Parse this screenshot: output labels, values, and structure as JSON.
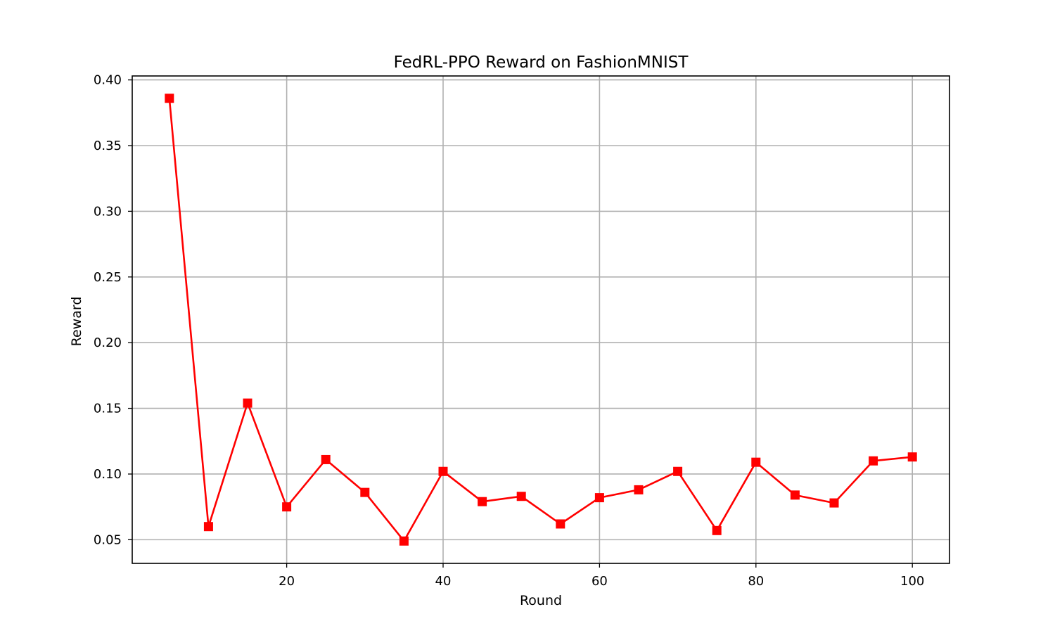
{
  "chart_data": {
    "type": "line",
    "title": "FedRL-PPO Reward on FashionMNIST",
    "xlabel": "Round",
    "ylabel": "Reward",
    "xlim": [
      0.25,
      104.75
    ],
    "ylim": [
      0.032,
      0.403
    ],
    "x_ticks": [
      20,
      40,
      60,
      80,
      100
    ],
    "y_ticks": [
      0.05,
      0.1,
      0.15,
      0.2,
      0.25,
      0.3,
      0.35,
      0.4
    ],
    "x_tick_labels": [
      "20",
      "40",
      "60",
      "80",
      "100"
    ],
    "y_tick_labels": [
      "0.05",
      "0.10",
      "0.15",
      "0.20",
      "0.25",
      "0.30",
      "0.35",
      "0.40"
    ],
    "grid": true,
    "series": [
      {
        "color": "#ff0000",
        "marker": "square",
        "x": [
          5,
          10,
          15,
          20,
          25,
          30,
          35,
          40,
          45,
          50,
          55,
          60,
          65,
          70,
          75,
          80,
          85,
          90,
          95,
          100
        ],
        "y": [
          0.386,
          0.06,
          0.154,
          0.075,
          0.111,
          0.086,
          0.049,
          0.102,
          0.079,
          0.083,
          0.062,
          0.082,
          0.088,
          0.102,
          0.057,
          0.109,
          0.084,
          0.078,
          0.11,
          0.113
        ]
      }
    ]
  }
}
